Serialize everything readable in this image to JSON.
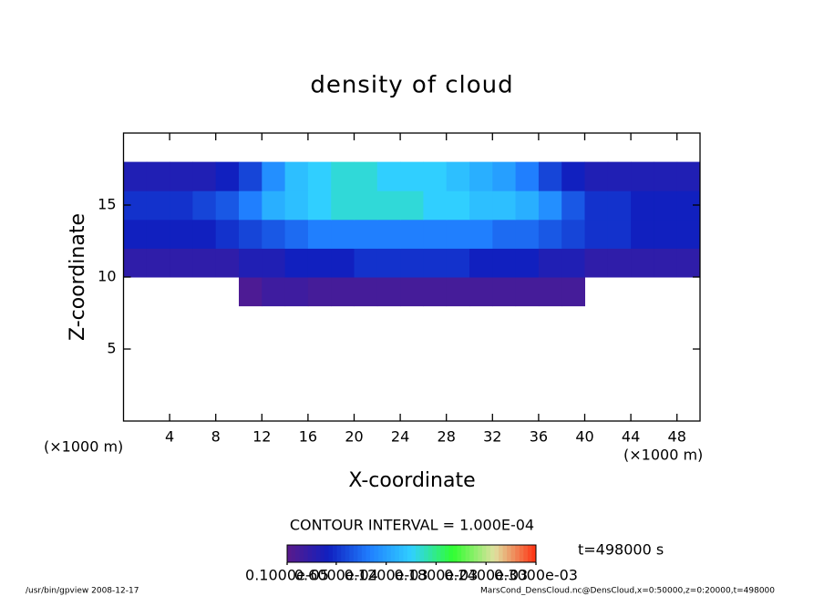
{
  "chart_data": {
    "type": "heatmap",
    "title": "density of cloud",
    "x_label": "X-coordinate",
    "y_label": "Z-coordinate",
    "x_unit": "(×1000 m)",
    "y_unit": "(×1000 m)",
    "xlim": [
      0,
      50
    ],
    "ylim": [
      0,
      20
    ],
    "xticks": [
      4,
      8,
      12,
      16,
      20,
      24,
      28,
      32,
      36,
      40,
      44,
      48
    ],
    "yticks": [
      5,
      10,
      15
    ],
    "x_edges": [
      0,
      2,
      4,
      6,
      8,
      10,
      12,
      14,
      16,
      18,
      20,
      22,
      24,
      26,
      28,
      30,
      32,
      34,
      36,
      38,
      40,
      42,
      44,
      46,
      48,
      50
    ],
    "y_edges": [
      8,
      10,
      12,
      14,
      16,
      18
    ],
    "z": [
      [
        null,
        null,
        null,
        null,
        null,
        1e-05,
        2e-05,
        2e-05,
        1.5e-05,
        1.5e-05,
        1.5e-05,
        1.5e-05,
        1.5e-05,
        1.5e-05,
        1.5e-05,
        1.5e-05,
        1.5e-05,
        1.5e-05,
        1.5e-05,
        1.5e-05,
        null,
        null,
        null,
        null,
        null
      ],
      [
        3e-05,
        3e-05,
        3e-05,
        3e-05,
        3e-05,
        4e-05,
        4e-05,
        5e-05,
        5e-05,
        5e-05,
        6e-05,
        6e-05,
        6e-05,
        6e-05,
        6e-05,
        5e-05,
        5e-05,
        5e-05,
        4e-05,
        4e-05,
        3e-05,
        3e-05,
        3e-05,
        3e-05,
        3e-05
      ],
      [
        5e-05,
        5e-05,
        5e-05,
        5e-05,
        6e-05,
        7e-05,
        8e-05,
        9e-05,
        0.0001,
        0.0001,
        0.0001,
        0.0001,
        0.0001,
        0.0001,
        0.0001,
        0.0001,
        9e-05,
        9e-05,
        8e-05,
        7e-05,
        6e-05,
        6e-05,
        5e-05,
        5e-05,
        5e-05
      ],
      [
        6e-05,
        6e-05,
        6e-05,
        7e-05,
        8e-05,
        0.0001,
        0.00013,
        0.00014,
        0.00015,
        0.00016,
        0.00016,
        0.00016,
        0.00016,
        0.00015,
        0.00015,
        0.00014,
        0.00014,
        0.00013,
        0.00011,
        8e-05,
        6e-05,
        6e-05,
        5e-05,
        5e-05,
        5e-05
      ],
      [
        4e-05,
        4e-05,
        4e-05,
        4e-05,
        5e-05,
        7e-05,
        0.00011,
        0.00014,
        0.00015,
        0.00016,
        0.00016,
        0.00015,
        0.00015,
        0.00015,
        0.00014,
        0.00013,
        0.00012,
        0.0001,
        7e-05,
        5e-05,
        4e-05,
        4e-05,
        4e-05,
        4e-05,
        4e-05
      ]
    ],
    "colorscale": [
      "#5a1a8a",
      "#1020c0",
      "#2080ff",
      "#30d0ff",
      "#30ff30",
      "#e0e0a0",
      "#ff3010"
    ],
    "clim": [
      1e-06,
      0.0003
    ],
    "colorbar_ticks": [
      {
        "value": 1e-06,
        "label": "0.1000e-05"
      },
      {
        "value": 6e-05,
        "label": "0.6000e-04"
      },
      {
        "value": 0.00012,
        "label": "0.1200e-03"
      },
      {
        "value": 0.00018,
        "label": "0.1800e-03"
      },
      {
        "value": 0.00024,
        "label": "0.2400e-03"
      },
      {
        "value": 0.0003,
        "label": "0.3000e-03"
      }
    ],
    "contour_interval": "CONTOUR INTERVAL = 1.000E-04",
    "time": "t=498000 s",
    "footer_left": "/usr/bin/gpview   2008-12-17",
    "footer_right": "MarsCond_DensCloud.nc@DensCloud,x=0:50000,z=0:20000,t=498000"
  }
}
